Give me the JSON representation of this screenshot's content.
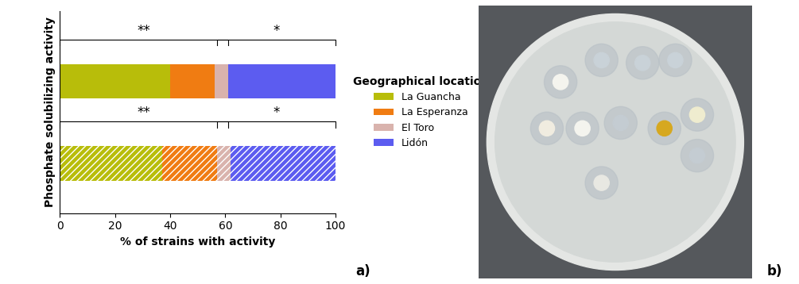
{
  "chart_data": {
    "type": "bar",
    "orientation": "horizontal",
    "stacked": true,
    "categories": [
      null,
      null
    ],
    "y_label": "Phosphate solubilizing activity",
    "x_label": "% of strains with activity",
    "xlim": [
      0,
      100
    ],
    "xticks": [
      0,
      20,
      40,
      60,
      80,
      100
    ],
    "tick_labels": "x",
    "legend": "center left",
    "legend_title": "Geographical location",
    "series": [
      {
        "name": "La Guancha",
        "color": "#b8bd0a",
        "values": [
          40,
          37
        ]
      },
      {
        "name": "La Esperanza",
        "color": "#f07c12",
        "values": [
          16,
          20
        ]
      },
      {
        "name": "El Toro",
        "color": "#d9b3ad",
        "values": [
          5,
          5
        ]
      },
      {
        "name": "Lidón",
        "color": "#5c5cf0",
        "values": [
          39,
          38
        ]
      }
    ],
    "annotations": [
      {
        "text": "**",
        "category": 0,
        "from": 0,
        "to": 61
      },
      {
        "text": "*",
        "category": 0,
        "from": 57,
        "to": 100
      },
      {
        "text": "**",
        "category": 1,
        "from": 0,
        "to": 61
      },
      {
        "text": "*",
        "category": 1,
        "from": 57,
        "to": 100
      }
    ]
  },
  "panel_labels": [
    "a)",
    "b)"
  ]
}
